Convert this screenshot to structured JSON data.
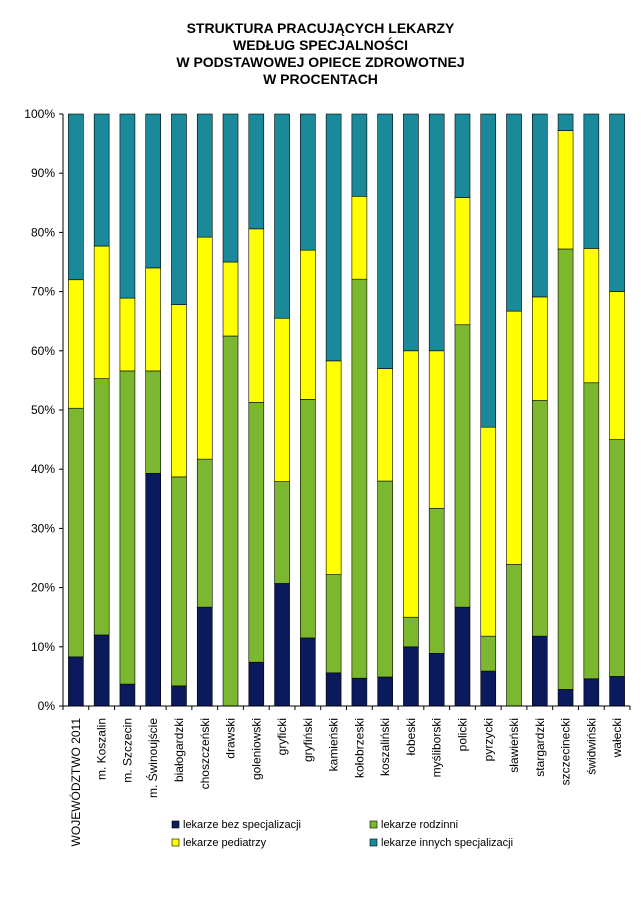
{
  "chart_data": {
    "type": "bar",
    "stacked": true,
    "normalized": true,
    "title": [
      "STRUKTURA PRACUJĄCYCH LEKARZY",
      "WEDŁUG SPECJALNOŚCI",
      "W PODSTAWOWEJ OPIECE ZDROWOTNEJ",
      "W PROCENTACH"
    ],
    "xlabel": "",
    "ylabel": "",
    "ylim": [
      0,
      100
    ],
    "y_ticks": [
      "0%",
      "10%",
      "20%",
      "30%",
      "40%",
      "50%",
      "60%",
      "70%",
      "80%",
      "90%",
      "100%"
    ],
    "categories": [
      "WOJEWÓDZTWO 2011",
      "m. Koszalin",
      "m. Szczecin",
      "m. Świnoujście",
      "białogardzki",
      "choszczeński",
      "drawski",
      "goleniowski",
      "gryficki",
      "gryfiński",
      "kamieński",
      "kołobrzeski",
      "koszaliński",
      "łobeski",
      "myśliborski",
      "policki",
      "pyrzycki",
      "sławieński",
      "stargardzki",
      "szczecinecki",
      "świdwiński",
      "wałecki"
    ],
    "series": [
      {
        "name": "lekarze bez specjalizacji",
        "color": "#0a1a5c",
        "values": [
          8.3,
          12.0,
          3.7,
          39.3,
          3.4,
          16.7,
          0,
          7.4,
          20.7,
          11.5,
          5.6,
          4.7,
          4.9,
          10.0,
          8.9,
          16.7,
          5.9,
          0,
          11.8,
          2.8,
          4.6,
          5.0
        ]
      },
      {
        "name": "lekarze rodzinni",
        "color": "#7cb82f",
        "values": [
          42.0,
          43.3,
          52.9,
          17.3,
          35.3,
          25.0,
          62.5,
          43.9,
          17.2,
          40.3,
          16.6,
          67.4,
          33.1,
          5.0,
          24.5,
          47.7,
          5.9,
          23.9,
          39.8,
          74.4,
          50.0,
          40.0
        ]
      },
      {
        "name": "lekarze pediatrzy",
        "color": "#ffff00",
        "values": [
          21.7,
          22.4,
          12.3,
          17.4,
          29.1,
          37.5,
          12.5,
          29.3,
          27.6,
          25.2,
          36.1,
          14.0,
          19.0,
          45.0,
          26.6,
          21.5,
          35.3,
          42.8,
          17.5,
          20.0,
          22.7,
          25.0
        ]
      },
      {
        "name": "lekarze innych specjalizacji",
        "color": "#1a8a9a",
        "values": [
          28.0,
          22.3,
          31.1,
          26.0,
          32.2,
          20.8,
          25.0,
          19.4,
          34.5,
          23.0,
          41.7,
          13.9,
          43.0,
          40.0,
          40.0,
          14.1,
          52.9,
          33.3,
          30.9,
          2.8,
          22.7,
          30.0
        ]
      }
    ],
    "legend_position": "bottom",
    "grid": false
  }
}
